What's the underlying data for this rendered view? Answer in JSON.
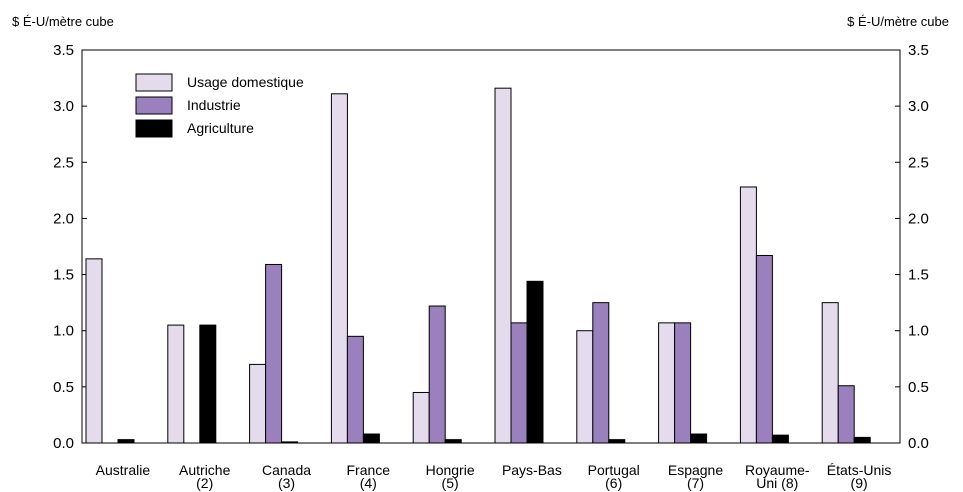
{
  "chart_data": {
    "type": "bar",
    "unit_left": "$ É-U/mètre cube",
    "unit_right": "$ É-U/mètre cube",
    "categories": [
      [
        "Australie"
      ],
      [
        "Autriche",
        "(2)"
      ],
      [
        "Canada",
        "(3)"
      ],
      [
        "France",
        "(4)"
      ],
      [
        "Hongrie",
        "(5)"
      ],
      [
        "Pays-Bas"
      ],
      [
        "Portugal",
        "(6)"
      ],
      [
        "Espagne",
        "(7)"
      ],
      [
        "Royaume-",
        "Uni (8)"
      ],
      [
        "États-Unis",
        "(9)"
      ]
    ],
    "series": [
      {
        "name": "Usage domestique",
        "color": "#e4dcec",
        "values": [
          1.64,
          1.05,
          0.7,
          3.11,
          0.45,
          3.16,
          1.0,
          1.07,
          2.28,
          1.25
        ]
      },
      {
        "name": "Industrie",
        "color": "#9a80bd",
        "values": [
          null,
          null,
          1.59,
          0.95,
          1.22,
          1.07,
          1.25,
          1.07,
          1.67,
          0.51
        ]
      },
      {
        "name": "Agriculture",
        "color": "#000000",
        "values": [
          0.03,
          1.05,
          0.01,
          0.08,
          0.03,
          1.44,
          0.03,
          0.08,
          0.07,
          0.05
        ]
      }
    ],
    "ylim": [
      0,
      3.5
    ],
    "yticks": [
      "0.0",
      "0.5",
      "1.0",
      "1.5",
      "2.0",
      "2.5",
      "3.0",
      "3.5"
    ],
    "legend_position": "top-left",
    "grid": false
  }
}
